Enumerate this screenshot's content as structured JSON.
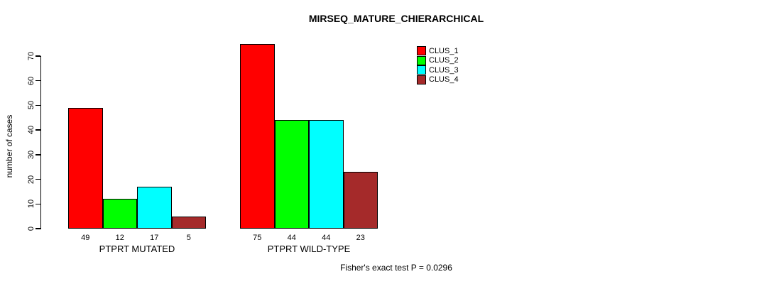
{
  "chart_data": {
    "type": "bar",
    "title": "MIRSEQ_MATURE_CHIERARCHICAL",
    "xlabel": "",
    "ylabel": "number of cases",
    "annotation": "Fisher's exact test P = 0.0296",
    "categories": [
      "PTPRT MUTATED",
      "PTPRT WILD-TYPE"
    ],
    "series": [
      {
        "name": "CLUS_1",
        "color": "#FF0000",
        "values": [
          49,
          75
        ]
      },
      {
        "name": "CLUS_2",
        "color": "#00FF00",
        "values": [
          12,
          44
        ]
      },
      {
        "name": "CLUS_3",
        "color": "#00FFFF",
        "values": [
          17,
          44
        ]
      },
      {
        "name": "CLUS_4",
        "color": "#A52A2A",
        "values": [
          5,
          23
        ]
      }
    ],
    "yticks": [
      0,
      10,
      20,
      30,
      40,
      50,
      60,
      70
    ],
    "ylim": [
      0,
      75
    ],
    "bar_value_labels": true,
    "grid": false,
    "legend_position": "upper-right-inside",
    "background": "#ffffff",
    "axis_color": "#000000"
  }
}
